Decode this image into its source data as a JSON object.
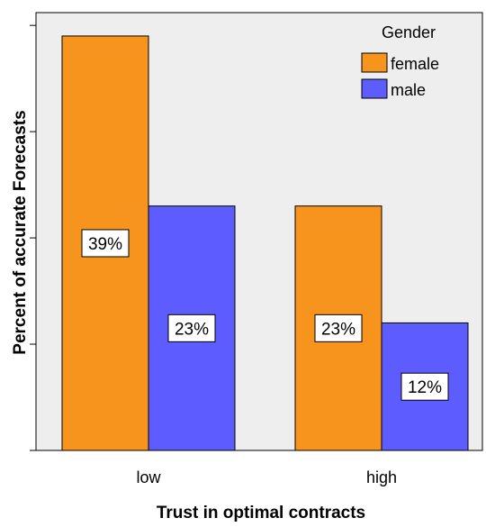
{
  "chart_data": {
    "type": "bar",
    "xlabel": "Trust in optimal contracts",
    "ylabel": "Percent of accurate Forecasts",
    "categories": [
      "low",
      "high"
    ],
    "ylim": [
      0,
      40
    ],
    "grid": false,
    "legend": {
      "title": "Gender",
      "position": "top-right"
    },
    "series": [
      {
        "name": "female",
        "color": "#f7941d",
        "values": [
          39,
          23
        ],
        "labels": [
          "39%",
          "23%"
        ]
      },
      {
        "name": "male",
        "color": "#5c5cff",
        "values": [
          23,
          12
        ],
        "labels": [
          "23%",
          "12%"
        ]
      }
    ]
  },
  "colors": {
    "plot_background": "#eeeeee",
    "bar_outline": "#000000"
  }
}
